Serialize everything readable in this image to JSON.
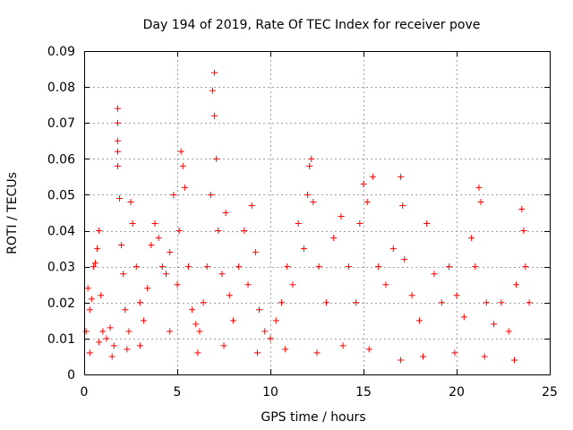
{
  "chart_data": {
    "type": "scatter",
    "title": "Day 194 of 2019, Rate Of TEC Index for receiver pove",
    "xlabel": "GPS time / hours",
    "ylabel": "ROTI / TECUs",
    "xlim": [
      0,
      25
    ],
    "ylim": [
      0,
      0.09
    ],
    "xticks": [
      "0",
      "5",
      "10",
      "15",
      "20",
      "25"
    ],
    "yticks": [
      "0",
      "0.01",
      "0.02",
      "0.03",
      "0.04",
      "0.05",
      "0.06",
      "0.07",
      "0.08",
      "0.09"
    ],
    "grid": true,
    "marker": "+",
    "color": "#ff0000",
    "series": [
      {
        "points": [
          [
            0.1,
            0.012
          ],
          [
            0.2,
            0.024
          ],
          [
            0.3,
            0.018
          ],
          [
            0.4,
            0.021
          ],
          [
            0.5,
            0.03
          ],
          [
            0.6,
            0.031
          ],
          [
            0.7,
            0.035
          ],
          [
            0.8,
            0.04
          ],
          [
            0.9,
            0.022
          ],
          [
            1.0,
            0.012
          ],
          [
            1.2,
            0.01
          ],
          [
            1.4,
            0.013
          ],
          [
            1.6,
            0.008
          ],
          [
            1.8,
            0.074
          ],
          [
            1.8,
            0.07
          ],
          [
            1.8,
            0.065
          ],
          [
            1.8,
            0.062
          ],
          [
            1.8,
            0.058
          ],
          [
            1.9,
            0.049
          ],
          [
            2.0,
            0.036
          ],
          [
            2.1,
            0.028
          ],
          [
            2.2,
            0.018
          ],
          [
            2.4,
            0.012
          ],
          [
            2.5,
            0.048
          ],
          [
            2.6,
            0.042
          ],
          [
            2.8,
            0.03
          ],
          [
            3.0,
            0.02
          ],
          [
            3.2,
            0.015
          ],
          [
            3.4,
            0.024
          ],
          [
            3.6,
            0.036
          ],
          [
            3.8,
            0.042
          ],
          [
            4.0,
            0.038
          ],
          [
            4.2,
            0.03
          ],
          [
            4.4,
            0.028
          ],
          [
            4.6,
            0.034
          ],
          [
            4.8,
            0.05
          ],
          [
            5.0,
            0.025
          ],
          [
            5.1,
            0.04
          ],
          [
            5.2,
            0.062
          ],
          [
            5.3,
            0.058
          ],
          [
            5.4,
            0.052
          ],
          [
            5.6,
            0.03
          ],
          [
            5.8,
            0.018
          ],
          [
            6.0,
            0.014
          ],
          [
            6.2,
            0.012
          ],
          [
            6.4,
            0.02
          ],
          [
            6.6,
            0.03
          ],
          [
            6.8,
            0.05
          ],
          [
            6.9,
            0.079
          ],
          [
            7.0,
            0.084
          ],
          [
            7.0,
            0.072
          ],
          [
            7.1,
            0.06
          ],
          [
            7.2,
            0.04
          ],
          [
            7.4,
            0.028
          ],
          [
            7.6,
            0.045
          ],
          [
            7.8,
            0.022
          ],
          [
            8.0,
            0.015
          ],
          [
            8.3,
            0.03
          ],
          [
            8.6,
            0.04
          ],
          [
            8.8,
            0.025
          ],
          [
            9.0,
            0.047
          ],
          [
            9.2,
            0.034
          ],
          [
            9.4,
            0.018
          ],
          [
            9.7,
            0.012
          ],
          [
            10.0,
            0.01
          ],
          [
            10.3,
            0.015
          ],
          [
            10.6,
            0.02
          ],
          [
            10.9,
            0.03
          ],
          [
            11.2,
            0.025
          ],
          [
            11.5,
            0.042
          ],
          [
            11.8,
            0.035
          ],
          [
            12.0,
            0.05
          ],
          [
            12.1,
            0.058
          ],
          [
            12.2,
            0.06
          ],
          [
            12.3,
            0.048
          ],
          [
            12.6,
            0.03
          ],
          [
            13.0,
            0.02
          ],
          [
            13.4,
            0.038
          ],
          [
            13.8,
            0.044
          ],
          [
            14.2,
            0.03
          ],
          [
            14.6,
            0.02
          ],
          [
            14.8,
            0.042
          ],
          [
            15.0,
            0.053
          ],
          [
            15.2,
            0.048
          ],
          [
            15.5,
            0.055
          ],
          [
            15.8,
            0.03
          ],
          [
            16.2,
            0.025
          ],
          [
            16.6,
            0.035
          ],
          [
            17.0,
            0.055
          ],
          [
            17.1,
            0.047
          ],
          [
            17.2,
            0.032
          ],
          [
            17.6,
            0.022
          ],
          [
            18.0,
            0.015
          ],
          [
            18.4,
            0.042
          ],
          [
            18.8,
            0.028
          ],
          [
            19.2,
            0.02
          ],
          [
            19.6,
            0.03
          ],
          [
            20.0,
            0.022
          ],
          [
            20.4,
            0.016
          ],
          [
            20.8,
            0.038
          ],
          [
            21.0,
            0.03
          ],
          [
            21.2,
            0.052
          ],
          [
            21.3,
            0.048
          ],
          [
            21.6,
            0.02
          ],
          [
            22.0,
            0.014
          ],
          [
            22.4,
            0.02
          ],
          [
            22.8,
            0.012
          ],
          [
            23.2,
            0.025
          ],
          [
            23.5,
            0.046
          ],
          [
            23.6,
            0.04
          ],
          [
            23.7,
            0.03
          ],
          [
            23.9,
            0.02
          ],
          [
            0.3,
            0.006
          ],
          [
            0.8,
            0.009
          ],
          [
            1.5,
            0.005
          ],
          [
            2.3,
            0.007
          ],
          [
            3.0,
            0.008
          ],
          [
            4.6,
            0.012
          ],
          [
            6.1,
            0.006
          ],
          [
            7.5,
            0.008
          ],
          [
            9.3,
            0.006
          ],
          [
            10.8,
            0.007
          ],
          [
            12.5,
            0.006
          ],
          [
            13.9,
            0.008
          ],
          [
            15.3,
            0.007
          ],
          [
            17.0,
            0.004
          ],
          [
            18.2,
            0.005
          ],
          [
            19.9,
            0.006
          ],
          [
            21.5,
            0.005
          ],
          [
            23.1,
            0.004
          ]
        ]
      }
    ]
  }
}
